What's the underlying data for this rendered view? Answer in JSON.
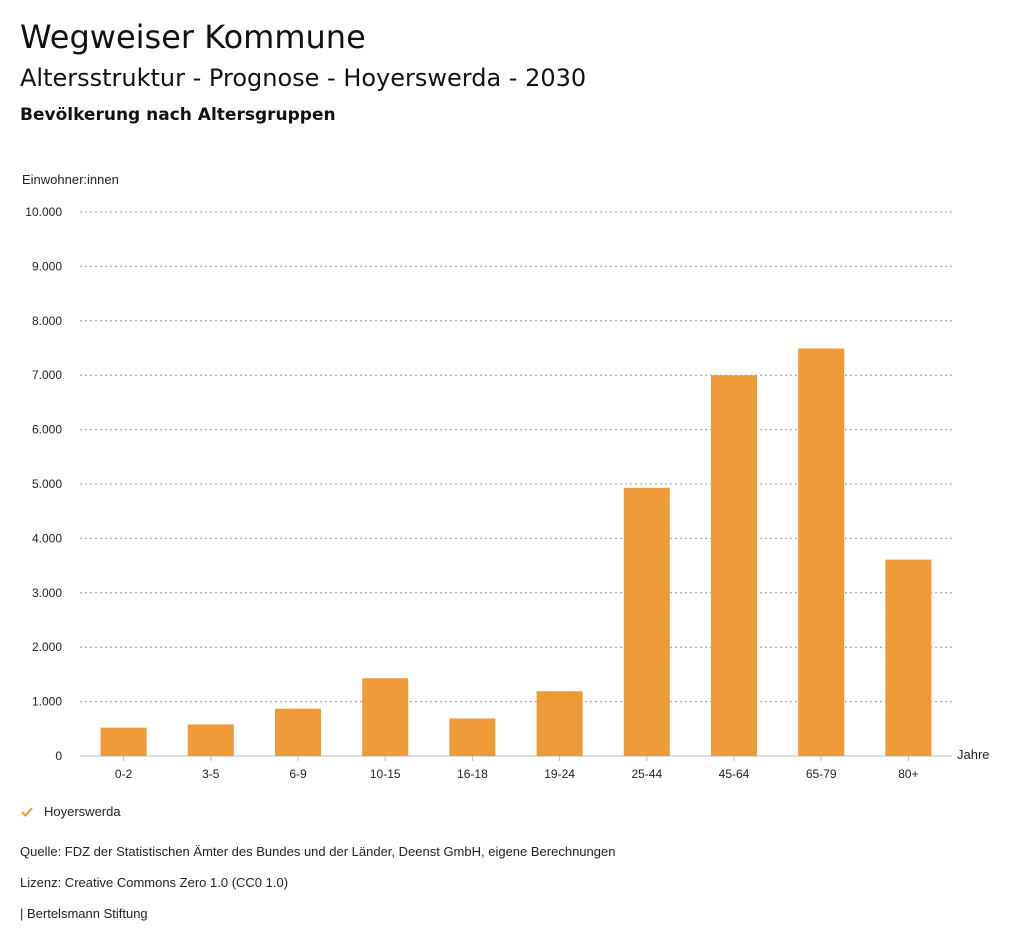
{
  "header": {
    "title": "Wegweiser Kommune",
    "subtitle": "Altersstruktur - Prognose - Hoyerswerda - 2030",
    "chart_heading": "Bevölkerung nach Altersgruppen"
  },
  "legend": {
    "label": "Hoyerswerda",
    "color": "#ee9a38",
    "icon": "checkmark-icon"
  },
  "footer": {
    "source": "Quelle: FDZ der Statistischen Ämter des Bundes und der Länder, Deenst GmbH, eigene Berechnungen",
    "license": "Lizenz: Creative Commons Zero 1.0 (CC0 1.0)",
    "publisher": "| Bertelsmann Stiftung"
  },
  "chart_data": {
    "type": "bar",
    "ylabel": "Einwohner:innen",
    "xlabel": "Jahre",
    "ylim": [
      0,
      10000
    ],
    "yticks": [
      0,
      1000,
      2000,
      3000,
      4000,
      5000,
      6000,
      7000,
      8000,
      9000,
      10000
    ],
    "ytick_labels": [
      "0",
      "1.000",
      "2.000",
      "3.000",
      "4.000",
      "5.000",
      "6.000",
      "7.000",
      "8.000",
      "9.000",
      "10.000"
    ],
    "categories": [
      "0-2",
      "3-5",
      "6-9",
      "10-15",
      "16-18",
      "19-24",
      "25-44",
      "45-64",
      "65-79",
      "80+"
    ],
    "series": [
      {
        "name": "Hoyerswerda",
        "color": "#ee9a38",
        "values": [
          520,
          580,
          870,
          1430,
          690,
          1190,
          4930,
          7000,
          7490,
          3610
        ]
      }
    ],
    "grid": true
  }
}
